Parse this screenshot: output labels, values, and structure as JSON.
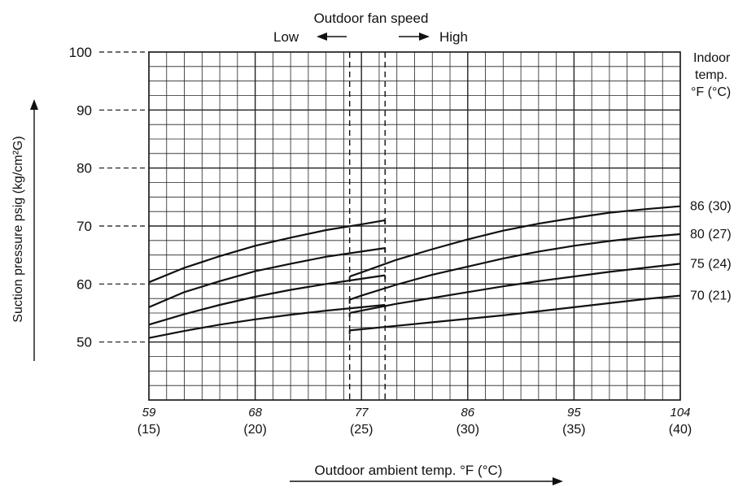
{
  "chart_data": {
    "type": "line",
    "title": "",
    "header": {
      "title": "Outdoor fan speed",
      "low": "Low",
      "high": "High"
    },
    "xlabel": "Outdoor ambient temp. °F (°C)",
    "ylabel": "Suction pressure psig (kg/cm²G)",
    "legend_title": [
      "Indoor",
      "temp.",
      "°F (°C)"
    ],
    "xlim": [
      59,
      104
    ],
    "ylim": [
      40,
      100
    ],
    "x_ticks": [
      {
        "value": 59,
        "f": "59",
        "c": "(15)"
      },
      {
        "value": 68,
        "f": "68",
        "c": "(20)"
      },
      {
        "value": 77,
        "f": "77",
        "c": "(25)"
      },
      {
        "value": 86,
        "f": "86",
        "c": "(30)"
      },
      {
        "value": 95,
        "f": "95",
        "c": "(35)"
      },
      {
        "value": 104,
        "f": "104",
        "c": "(40)"
      }
    ],
    "y_ticks": [
      50,
      60,
      70,
      80,
      90,
      100
    ],
    "grid": true,
    "fan_speed_switch": {
      "low_limit": 76,
      "high_limit": 79
    },
    "series": [
      {
        "name": "86 (30)",
        "low": {
          "x": [
            59,
            62,
            65,
            68,
            71,
            74,
            77,
            79
          ],
          "y": [
            60.3,
            62.8,
            64.8,
            66.6,
            68.0,
            69.3,
            70.3,
            71.0
          ]
        },
        "high": {
          "x": [
            76,
            77,
            80,
            83,
            86,
            89,
            92,
            95,
            98,
            101,
            104
          ],
          "y": [
            61.3,
            62.0,
            64.2,
            66.0,
            67.7,
            69.2,
            70.4,
            71.4,
            72.3,
            72.9,
            73.4
          ]
        }
      },
      {
        "name": "80 (27)",
        "low": {
          "x": [
            59,
            62,
            65,
            68,
            71,
            74,
            77,
            79
          ],
          "y": [
            56.0,
            58.6,
            60.5,
            62.2,
            63.5,
            64.7,
            65.6,
            66.2
          ]
        },
        "high": {
          "x": [
            76,
            77,
            80,
            83,
            86,
            89,
            92,
            95,
            98,
            101,
            104
          ],
          "y": [
            57.3,
            58.0,
            59.9,
            61.6,
            63.0,
            64.4,
            65.6,
            66.6,
            67.4,
            68.1,
            68.6
          ]
        }
      },
      {
        "name": "75 (24)",
        "low": {
          "x": [
            59,
            62,
            65,
            68,
            71,
            74,
            77,
            79
          ],
          "y": [
            53.0,
            54.8,
            56.4,
            57.8,
            59.0,
            60.0,
            60.9,
            61.5
          ]
        },
        "high": {
          "x": [
            76,
            77,
            80,
            83,
            86,
            89,
            92,
            95,
            98,
            101,
            104
          ],
          "y": [
            55.0,
            55.4,
            56.6,
            57.6,
            58.6,
            59.6,
            60.5,
            61.3,
            62.1,
            62.8,
            63.5
          ]
        }
      },
      {
        "name": "70 (21)",
        "low": {
          "x": [
            59,
            62,
            65,
            68,
            71,
            74,
            77,
            79
          ],
          "y": [
            50.7,
            51.9,
            53.0,
            53.9,
            54.7,
            55.4,
            56.0,
            56.4
          ]
        },
        "high": {
          "x": [
            76,
            77,
            80,
            83,
            86,
            89,
            92,
            95,
            98,
            101,
            104
          ],
          "y": [
            52.0,
            52.2,
            52.8,
            53.4,
            54.0,
            54.6,
            55.3,
            56.0,
            56.7,
            57.4,
            58.0
          ]
        }
      }
    ]
  }
}
